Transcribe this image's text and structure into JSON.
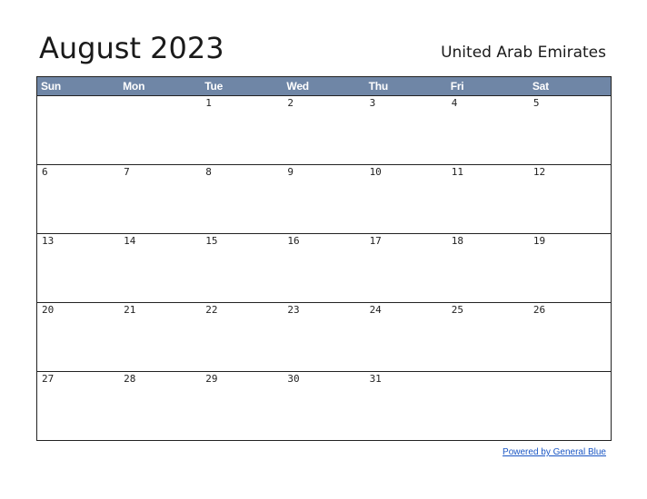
{
  "title": "August 2023",
  "country": "United Arab Emirates",
  "header_color": "#6f86a6",
  "weekdays": [
    "Sun",
    "Mon",
    "Tue",
    "Wed",
    "Thu",
    "Fri",
    "Sat"
  ],
  "weeks": [
    [
      "",
      "",
      "1",
      "2",
      "3",
      "4",
      "5"
    ],
    [
      "6",
      "7",
      "8",
      "9",
      "10",
      "11",
      "12"
    ],
    [
      "13",
      "14",
      "15",
      "16",
      "17",
      "18",
      "19"
    ],
    [
      "20",
      "21",
      "22",
      "23",
      "24",
      "25",
      "26"
    ],
    [
      "27",
      "28",
      "29",
      "30",
      "31",
      "",
      ""
    ]
  ],
  "footer": {
    "powered_by": "Powered by General Blue"
  }
}
